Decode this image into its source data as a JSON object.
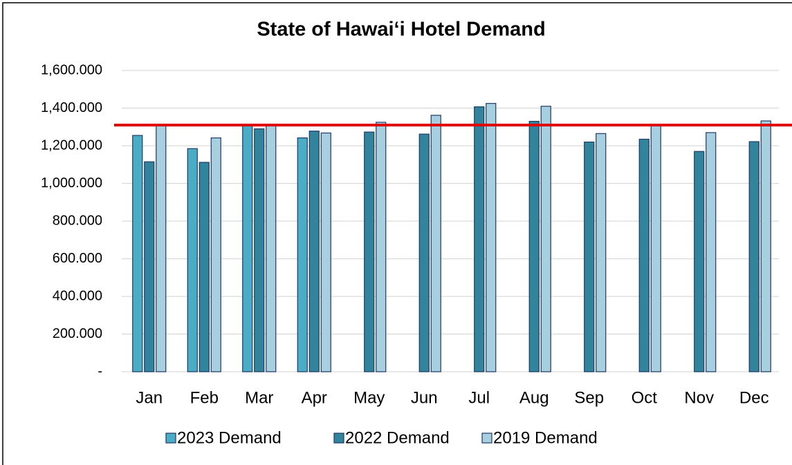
{
  "chart_data": {
    "type": "bar",
    "title": "State of Hawai‘i Hotel Demand",
    "categories": [
      "Jan",
      "Feb",
      "Mar",
      "Apr",
      "May",
      "Jun",
      "Jul",
      "Aug",
      "Sep",
      "Oct",
      "Nov",
      "Dec"
    ],
    "series": [
      {
        "name": "2023 Demand",
        "color": "#4bacc6",
        "values": [
          1255,
          1185,
          1310,
          1242,
          null,
          null,
          null,
          null,
          null,
          null,
          null,
          null
        ]
      },
      {
        "name": "2022 Demand",
        "color": "#31849b",
        "values": [
          1115,
          1112,
          1290,
          1278,
          1273,
          1262,
          1407,
          1330,
          1220,
          1235,
          1170,
          1222
        ]
      },
      {
        "name": "2019 Demand",
        "color": "#a8cfe0",
        "values": [
          1310,
          1242,
          1315,
          1268,
          1325,
          1362,
          1425,
          1410,
          1265,
          1312,
          1270,
          1332
        ]
      }
    ],
    "ylim": [
      0,
      1600
    ],
    "yticks": [
      {
        "value": 0,
        "label": "-"
      },
      {
        "value": 200,
        "label": "200.000"
      },
      {
        "value": 400,
        "label": "400.000"
      },
      {
        "value": 600,
        "label": "600.000"
      },
      {
        "value": 800,
        "label": "800.000"
      },
      {
        "value": 1000,
        "label": "1,000.000"
      },
      {
        "value": 1200,
        "label": "1,200.000"
      },
      {
        "value": 1400,
        "label": "1,400.000"
      },
      {
        "value": 1600,
        "label": "1,600.000"
      }
    ],
    "grid": true,
    "legend": "bottom",
    "reference_line": {
      "value": 1310,
      "color": "#e00000"
    }
  }
}
